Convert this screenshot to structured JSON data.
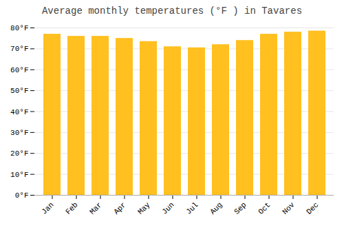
{
  "chart_data": {
    "type": "bar",
    "title": "Average monthly temperatures (°F ) in Tavares",
    "categories": [
      "Jan",
      "Feb",
      "Mar",
      "Apr",
      "May",
      "Jun",
      "Jul",
      "Aug",
      "Sep",
      "Oct",
      "Nov",
      "Dec"
    ],
    "values": [
      77,
      76,
      76,
      75,
      73.5,
      71,
      70.5,
      72,
      74,
      77,
      78,
      78.5
    ],
    "color": "#FFC020",
    "ylim": [
      0,
      80
    ],
    "yticks": [
      {
        "value": 0,
        "label": "0°F"
      },
      {
        "value": 10,
        "label": "10°F"
      },
      {
        "value": 20,
        "label": "20°F"
      },
      {
        "value": 30,
        "label": "30°F"
      },
      {
        "value": 40,
        "label": "40°F"
      },
      {
        "value": 50,
        "label": "50°F"
      },
      {
        "value": 60,
        "label": "60°F"
      },
      {
        "value": 70,
        "label": "70°F"
      },
      {
        "value": 80,
        "label": "80°F"
      }
    ],
    "grid": true
  }
}
